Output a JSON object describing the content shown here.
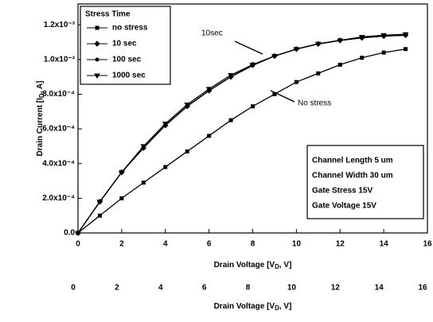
{
  "chart_data": {
    "type": "line",
    "xlabel": {
      "text": "Drain Voltage [V",
      "sub": "D",
      "tail": ", V]"
    },
    "ylabel": {
      "text": "Drain Current [I",
      "sub": "D",
      "tail": ", A]"
    },
    "xlim": [
      0,
      16
    ],
    "xticks": [
      0,
      2,
      4,
      6,
      8,
      10,
      12,
      14,
      16
    ],
    "ylim": [
      0,
      0.00132
    ],
    "yticks": [
      {
        "value": 0,
        "label": "0.0"
      },
      {
        "value": 0.0002,
        "label": "2.0x10⁻⁴"
      },
      {
        "value": 0.0004,
        "label": "4.0x10⁻⁴"
      },
      {
        "value": 0.0006,
        "label": "6.0x10⁻⁴"
      },
      {
        "value": 0.0008,
        "label": "8.0x10⁻⁴"
      },
      {
        "value": 0.001,
        "label": "1.0x10⁻³"
      },
      {
        "value": 0.0012,
        "label": "1.2x10⁻³"
      }
    ],
    "legend_title": "Stress Time",
    "legend": "upper left",
    "x": [
      0,
      1,
      2,
      3,
      4,
      5,
      6,
      7,
      8,
      9,
      10,
      11,
      12,
      13,
      14,
      15
    ],
    "series": [
      {
        "name": "no stress",
        "color": "#000000",
        "marker": "square",
        "values": [
          0,
          0.0001,
          0.0002,
          0.00029,
          0.00038,
          0.00047,
          0.00056,
          0.00065,
          0.00073,
          0.0008,
          0.00087,
          0.00092,
          0.00097,
          0.00101,
          0.00104,
          0.00106
        ]
      },
      {
        "name": "10 sec",
        "color": "#000000",
        "marker": "diamond",
        "values": [
          0,
          0.00018,
          0.00035,
          0.00049,
          0.00062,
          0.00073,
          0.00082,
          0.0009,
          0.00097,
          0.00102,
          0.00106,
          0.00109,
          0.00111,
          0.001125,
          0.001135,
          0.00114
        ]
      },
      {
        "name": "100 sec",
        "color": "#000000",
        "marker": "circle",
        "values": [
          0,
          0.00018,
          0.00035,
          0.00049,
          0.00062,
          0.00073,
          0.00082,
          0.0009,
          0.000965,
          0.00102,
          0.00106,
          0.00109,
          0.00111,
          0.001125,
          0.001135,
          0.00114
        ]
      },
      {
        "name": "1000 sec",
        "color": "#000000",
        "marker": "triangle",
        "values": [
          0,
          0.00018,
          0.00035,
          0.0005,
          0.00063,
          0.00074,
          0.00083,
          0.00091,
          0.00097,
          0.00102,
          0.00106,
          0.00109,
          0.00111,
          0.00113,
          0.00114,
          0.001145
        ]
      }
    ],
    "annotations": [
      "10sec",
      "No stress"
    ],
    "info_box": [
      "Channel Length 5 um",
      "Channel Width 30 um",
      "Gate Stress 15V",
      "Gate Voltage 15V"
    ]
  }
}
